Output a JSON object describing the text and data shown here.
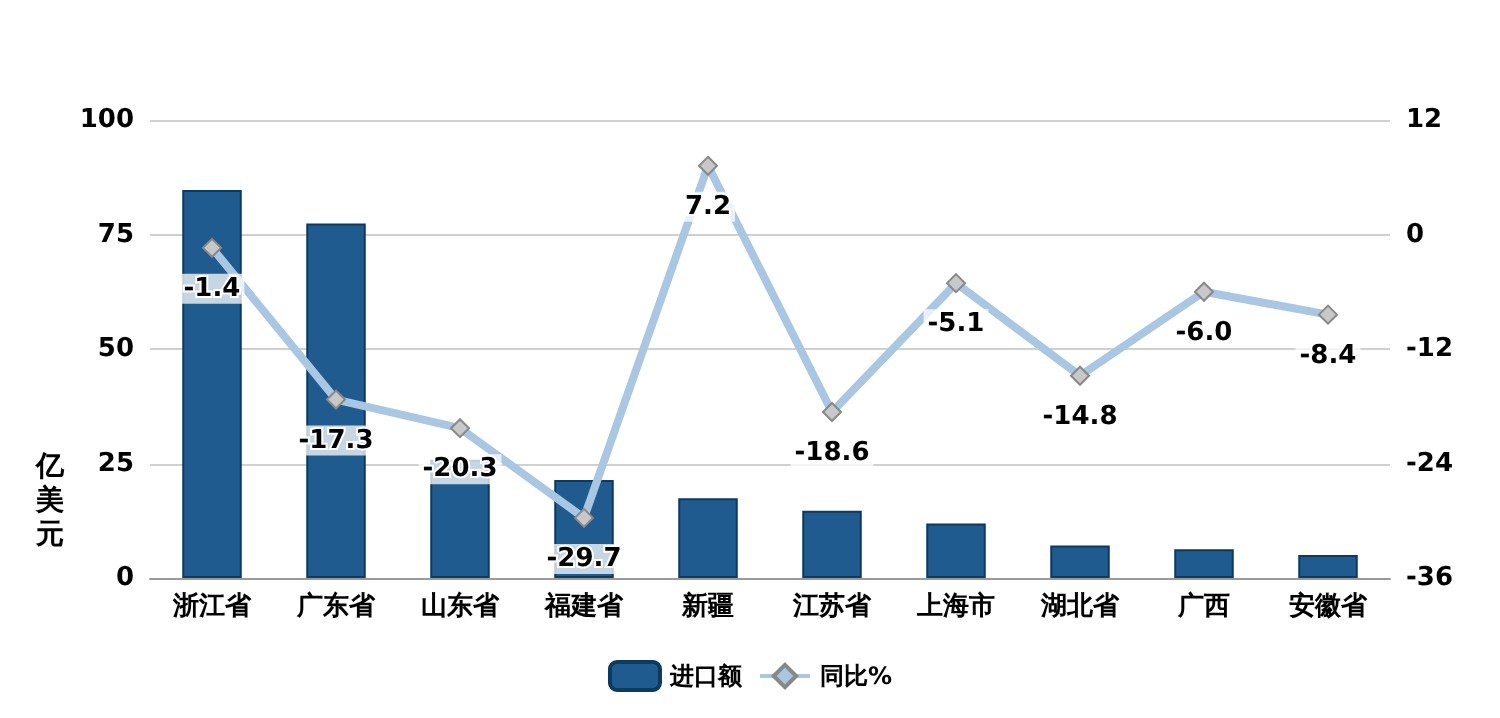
{
  "chart_data": {
    "type": "bar",
    "categories": [
      "浙江省",
      "广东省",
      "山东省",
      "福建省",
      "新疆",
      "江苏省",
      "上海市",
      "湖北省",
      "广西",
      "安徽省"
    ],
    "ylabel": "亿美元",
    "ylim": [
      0,
      100
    ],
    "yticks": [
      0,
      25,
      50,
      75,
      100
    ],
    "y2lim": [
      -36,
      12
    ],
    "y2ticks": [
      -36,
      -24,
      -12,
      0,
      12
    ],
    "series": [
      {
        "name": "进口额",
        "color": "#1f5b8e",
        "values": [
          84.7,
          77.4,
          25.8,
          21.4,
          17.4,
          14.7,
          11.9,
          7.1,
          6.3,
          5.0
        ]
      },
      {
        "name": "同比%",
        "type": "line",
        "axis": "y2",
        "color": "#a9c6e3",
        "marker": "diamond",
        "value_labels": [
          "-1.4",
          "-17.3",
          "-20.3",
          "-29.7",
          "7.2",
          "-18.6",
          "-5.1",
          "-14.8",
          "-6.0",
          "-8.4"
        ],
        "values": [
          -1.4,
          -17.3,
          -20.3,
          -29.7,
          7.2,
          -18.6,
          -5.1,
          -14.8,
          -6.0,
          -8.4
        ]
      }
    ],
    "grid": "y",
    "legend": "bottom"
  }
}
